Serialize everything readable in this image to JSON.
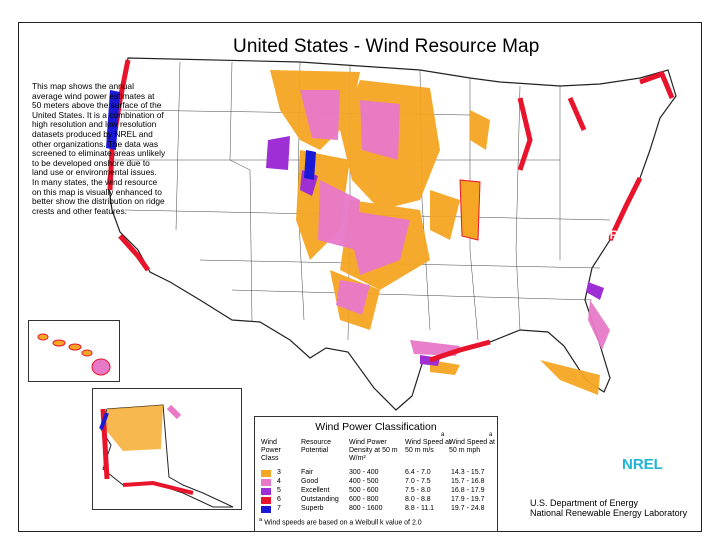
{
  "title": "United States - Wind Resource Map",
  "description": "This map shows the annual average wind power estimates at 50 meters above the surface of the United States. It is a combination of high resolution and low resolution datasets produced by NREL and other organizations. The data was screened to eliminate areas unlikely to be developed onshore due to land use or environmental issues. In many states, the wind resource on this map is visually enhanced to better show the distribution on ridge crests and other features.",
  "legend": {
    "title": "Wind Power Classification",
    "headers": {
      "class": "Wind Power Class",
      "potential": "Resource Potential",
      "density": "Wind Power Density at 50 m W/m²",
      "speed_ms": "Wind Speed at 50 m m/s",
      "speed_mph": "Wind Speed at 50 m mph",
      "superscript": "a"
    },
    "rows": [
      {
        "cls": "3",
        "potential": "Fair",
        "density": "300 - 400",
        "ms": "6.4 - 7.0",
        "mph": "14.3 - 15.7",
        "color": "#f5a623"
      },
      {
        "cls": "4",
        "potential": "Good",
        "density": "400 - 500",
        "ms": "7.0 - 7.5",
        "mph": "15.7 - 16.8",
        "color": "#e879c9"
      },
      {
        "cls": "5",
        "potential": "Excellent",
        "density": "500 - 600",
        "ms": "7.5 - 8.0",
        "mph": "16.8 - 17.9",
        "color": "#9d2fd4"
      },
      {
        "cls": "6",
        "potential": "Outstanding",
        "density": "600 - 800",
        "ms": "8.0 - 8.8",
        "mph": "17.9 - 19.7",
        "color": "#e8142b"
      },
      {
        "cls": "7",
        "potential": "Superb",
        "density": "800 - 1600",
        "ms": "8.8 - 11.1",
        "mph": "19.7 - 24.8",
        "color": "#1a1ad6"
      }
    ],
    "footnote": "Wind speeds are based on a Weibull k value of 2.0"
  },
  "credits": {
    "line1": "U.S. Department of Energy",
    "line2": "National Renewable Energy Laboratory",
    "logo": "NREL"
  },
  "icons": {
    "logo": "nrel-sunburst-icon"
  }
}
